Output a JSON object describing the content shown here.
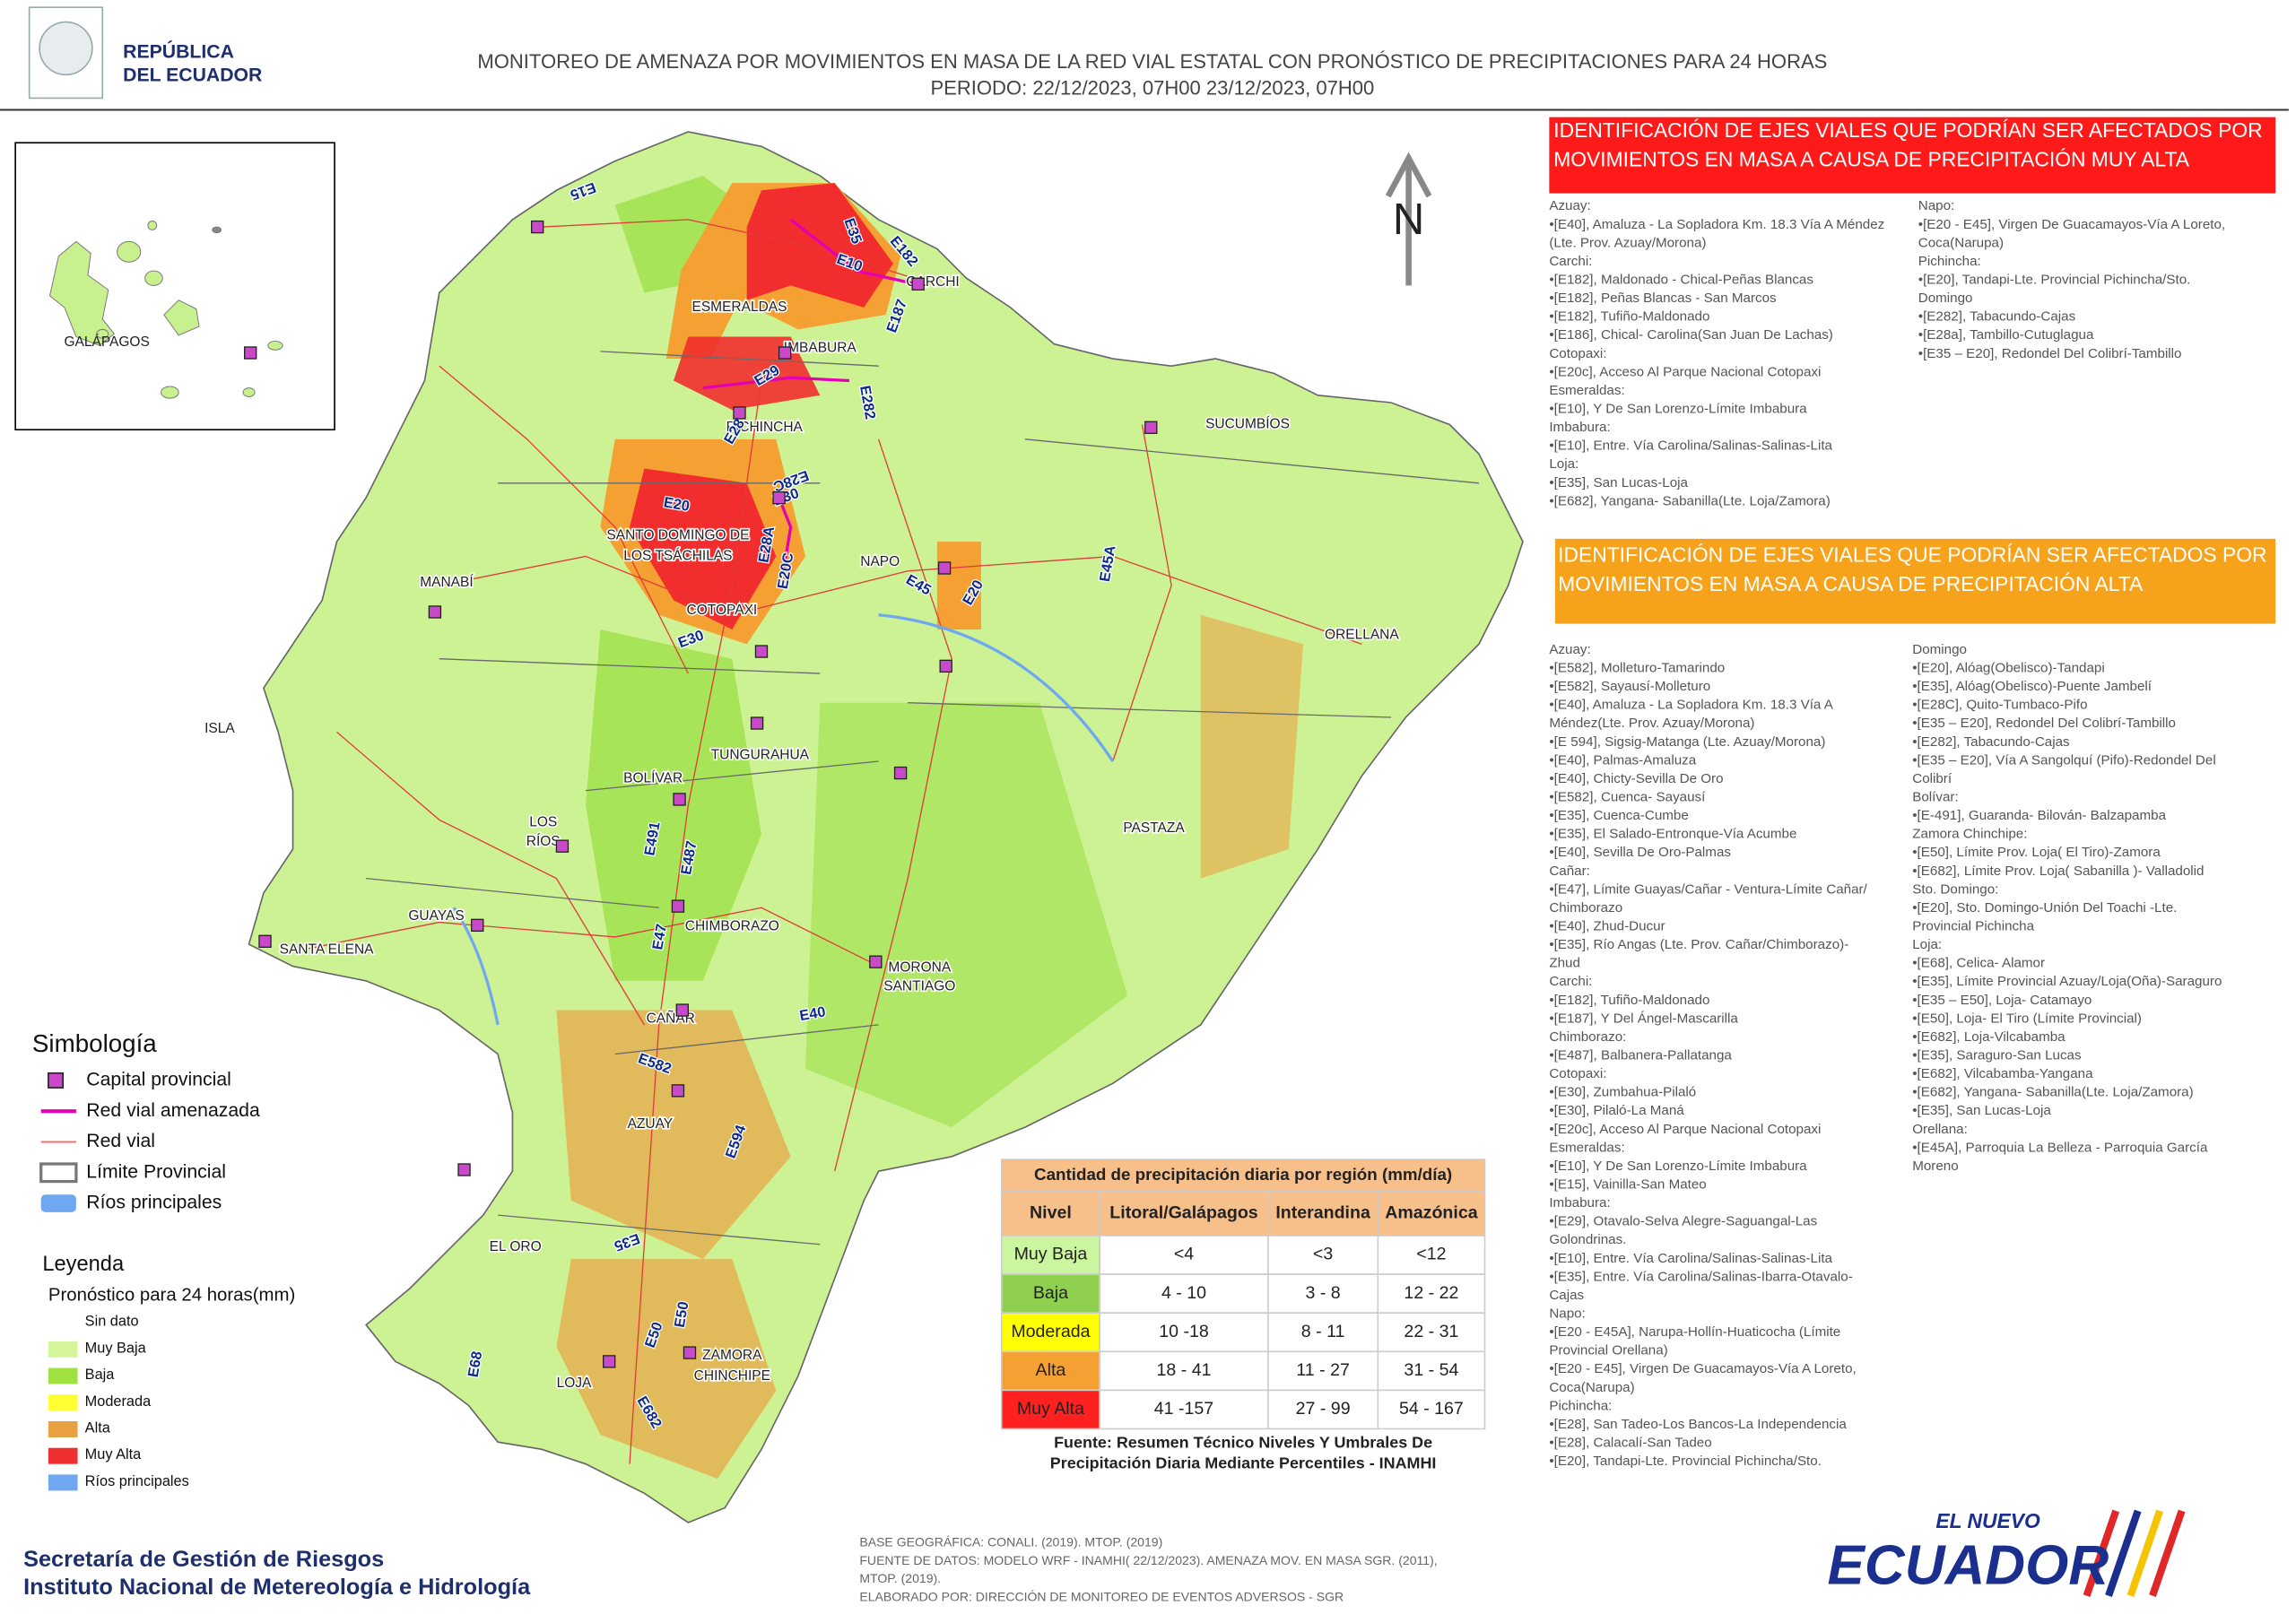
{
  "header": {
    "logo_lines": [
      "REPÚBLICA",
      "DEL ECUADOR"
    ],
    "title": "MONITOREO DE AMENAZA POR MOVIMIENTOS EN MASA DE LA RED VIAL  ESTATAL  CON PRONÓSTICO  DE  PRECIPITACIONES PARA 24 HORAS",
    "period": "PERIODO: 22/12/2023, 07H00 23/12/2023, 07H00"
  },
  "map": {
    "north": "N",
    "inset_label": "GALÁPAGOS",
    "provinces": [
      "ESMERALDAS",
      "CARCHI",
      "IMBABURA",
      "PICHINCHA",
      "SUCUMBÍOS",
      "SANTO DOMINGO DE",
      "LOS TSÁCHILAS",
      "NAPO",
      "MANABÍ",
      "COTOPAXI",
      "ORELLANA",
      "ISLA",
      "TUNGURAHUA",
      "BOLÍVAR",
      "LOS",
      "RÍOS",
      "PASTAZA",
      "GUAYAS",
      "CHIMBORAZO",
      "SANTA ELENA",
      "MORONA",
      "SANTIAGO",
      "CAÑAR",
      "AZUAY",
      "EL ORO",
      "ZAMORA",
      "CHINCHIPE",
      "LOJA"
    ],
    "roads": [
      "E15",
      "E35",
      "E182",
      "E10",
      "E187",
      "E29",
      "E282",
      "E28",
      "E28C",
      "E20",
      "E30",
      "E28A",
      "E20C",
      "E45",
      "E20",
      "E45A",
      "E30",
      "E491",
      "E487",
      "E47",
      "E40",
      "E582",
      "E594",
      "E35",
      "E50",
      "E50",
      "E68",
      "E682"
    ]
  },
  "very_high": {
    "title": [
      "IDENTIFICACIÓN DE EJES VIALES QUE PODRÍAN SER AFECTADOS POR",
      "MOVIMIENTOS EN MASA A CAUSA DE PRECIPITACIÓN MUY ALTA"
    ],
    "left": [
      "Azuay:",
      "•[E40], Amaluza - La Sopladora Km. 18.3 Vía A Méndez",
      "(Lte. Prov. Azuay/Morona)",
      "Carchi:",
      "•[E182], Maldonado - Chical-Peñas Blancas",
      "•[E182], Peñas Blancas - San Marcos",
      "•[E182], Tufiño-Maldonado",
      "•[E186], Chical- Carolina(San Juan De Lachas)",
      "Cotopaxi:",
      "•[E20c], Acceso Al Parque Nacional Cotopaxi",
      "Esmeraldas:",
      "•[E10], Y De San Lorenzo-Límite Imbabura",
      "Imbabura:",
      "•[E10], Entre. Vía Carolina/Salinas-Salinas-Lita",
      "Loja:",
      "•[E35], San Lucas-Loja",
      "•[E682], Yangana- Sabanilla(Lte. Loja/Zamora)"
    ],
    "right": [
      "Napo:",
      "•[E20 - E45], Virgen De Guacamayos-Vía A Loreto,",
      "Coca(Narupa)",
      "Pichincha:",
      "•[E20], Tandapi-Lte. Provincial Pichincha/Sto.",
      "Domingo",
      "•[E282], Tabacundo-Cajas",
      "•[E28a], Tambillo-Cutuglagua",
      "•[E35 – E20], Redondel Del Colibrí-Tambillo"
    ]
  },
  "high": {
    "title": [
      "IDENTIFICACIÓN DE EJES VIALES QUE PODRÍAN SER AFECTADOS POR",
      "MOVIMIENTOS EN MASA A CAUSA DE PRECIPITACIÓN  ALTA"
    ],
    "left": [
      "Azuay:",
      "•[E582], Molleturo-Tamarindo",
      "•[E582], Sayausí-Molleturo",
      "•[E40], Amaluza - La Sopladora Km. 18.3 Vía A",
      "Méndez(Lte. Prov. Azuay/Morona)",
      "•[E 594], Sigsig-Matanga (Lte. Azuay/Morona)",
      "•[E40], Palmas-Amaluza",
      "•[E40], Chicty-Sevilla De Oro",
      "•[E582], Cuenca- Sayausí",
      "•[E35], Cuenca-Cumbe",
      "•[E35], El Salado-Entronque-Vía Acumbe",
      "•[E40], Sevilla De Oro-Palmas",
      "Cañar:",
      "•[E47], Límite Guayas/Cañar - Ventura-Límite Cañar/",
      "Chimborazo",
      "•[E40], Zhud-Ducur",
      "•[E35], Río Angas (Lte. Prov. Cañar/Chimborazo)-",
      "Zhud",
      "Carchi:",
      "•[E182], Tufiño-Maldonado",
      "•[E187], Y Del Ángel-Mascarilla",
      "Chimborazo:",
      "•[E487], Balbanera-Pallatanga",
      "Cotopaxi:",
      "•[E30], Zumbahua-Pilaló",
      "•[E30], Pilaló-La Maná",
      "•[E20c], Acceso Al Parque Nacional Cotopaxi",
      "Esmeraldas:",
      "•[E10], Y De San Lorenzo-Límite Imbabura",
      "•[E15], Vainilla-San Mateo",
      "Imbabura:",
      "•[E29], Otavalo-Selva Alegre-Saguangal-Las",
      "Golondrinas.",
      "•[E10], Entre. Vía Carolina/Salinas-Salinas-Lita",
      "•[E35], Entre. Vía Carolina/Salinas-Ibarra-Otavalo-",
      "Cajas",
      "Napo:",
      "•[E20 - E45A], Narupa-Hollín-Huaticocha (Límite",
      "Provincial Orellana)",
      "•[E20 - E45], Virgen De Guacamayos-Vía A Loreto,",
      "Coca(Narupa)",
      "Pichincha:",
      "•[E28], San Tadeo-Los Bancos-La Independencia",
      "•[E28], Calacalí-San Tadeo",
      "•[E20], Tandapi-Lte. Provincial Pichincha/Sto."
    ],
    "right": [
      "Domingo",
      "•[E20], Alóag(Obelisco)-Tandapi",
      "•[E35], Alóag(Obelisco)-Puente Jambelí",
      "•[E28C], Quito-Tumbaco-Pifo",
      "•[E35 – E20], Redondel Del Colibrí-Tambillo",
      "•[E282], Tabacundo-Cajas",
      "•[E35 – E20], Vía A Sangolquí (Pifo)-Redondel Del",
      "Colibrí",
      "Bolívar:",
      "•[E-491], Guaranda- Bilován- Balzapamba",
      "Zamora Chinchipe:",
      "•[E50], Límite Prov. Loja( El Tiro)-Zamora",
      "•[E682], Límite Prov.  Loja( Sabanilla )- Valladolid",
      "Sto. Domingo:",
      "•[E20], Sto. Domingo-Unión Del Toachi -Lte.",
      "Provincial Pichincha",
      "Loja:",
      "•[E68], Celica- Alamor",
      "•[E35], Límite Provincial Azuay/Loja(Oña)-Saraguro",
      "•[E35 – E50], Loja- Catamayo",
      "•[E50], Loja- El Tiro (Límite Provincial)",
      "•[E682], Loja-Vilcabamba",
      "•[E35], Saraguro-San Lucas",
      "•[E682], Vilcabamba-Yangana",
      "•[E682], Yangana- Sabanilla(Lte. Loja/Zamora)",
      "•[E35], San Lucas-Loja",
      "Orellana:",
      "•[E45A], Parroquia La Belleza - Parroquia García",
      "Moreno"
    ]
  },
  "table": {
    "title": "Cantidad de precipitación diaria por región (mm/día)",
    "header": [
      "Nivel",
      "Litoral/Galápagos",
      "Interandina",
      "Amazónica"
    ],
    "rows": [
      [
        "Muy Baja",
        "<4",
        "<3",
        "<12"
      ],
      [
        "Baja",
        "4 - 10",
        "3 - 8",
        "12 - 22"
      ],
      [
        "Moderada",
        "10 -18",
        "8 - 11",
        "22 - 31"
      ],
      [
        "Alta",
        "18 - 41",
        "11 - 27",
        "31 - 54"
      ],
      [
        "Muy Alta",
        "41 -157",
        "27 - 99",
        "54 - 167"
      ]
    ],
    "source": [
      "Fuente: Resumen Técnico Niveles Y Umbrales De",
      "Precipitación Diaria Mediante Percentiles - INAMHI"
    ]
  },
  "symbology": {
    "title": "Simbología",
    "items": [
      "Capital provincial",
      "Red vial amenazada",
      "Red vial",
      "Límite Provincial",
      "Ríos principales"
    ]
  },
  "legend": {
    "title": "Leyenda",
    "subtitle": "Pronóstico para 24 horas(mm)",
    "items": [
      "Sin dato",
      "Muy Baja",
      "Baja",
      "Moderada",
      "Alta",
      "Muy Alta",
      "Ríos principales"
    ]
  },
  "footer": {
    "institutions": [
      "Secretaría de Gestión de Riesgos",
      "Instituto Nacional de Metereología e Hidrología"
    ],
    "credits": [
      "BASE GEOGRÁFICA: CONALI. (2019). MTOP. (2019)",
      "FUENTE DE DATOS: MODELO WRF - INAMHI( 22/12/2023).  AMENAZA MOV. EN MASA SGR. (2011),",
      "MTOP. (2019).",
      "ELABORADO POR: DIRECCIÓN DE MONITOREO DE EVENTOS ADVERSOS - SGR"
    ],
    "brand": [
      "EL NUEVO",
      "ECUADOR"
    ]
  }
}
